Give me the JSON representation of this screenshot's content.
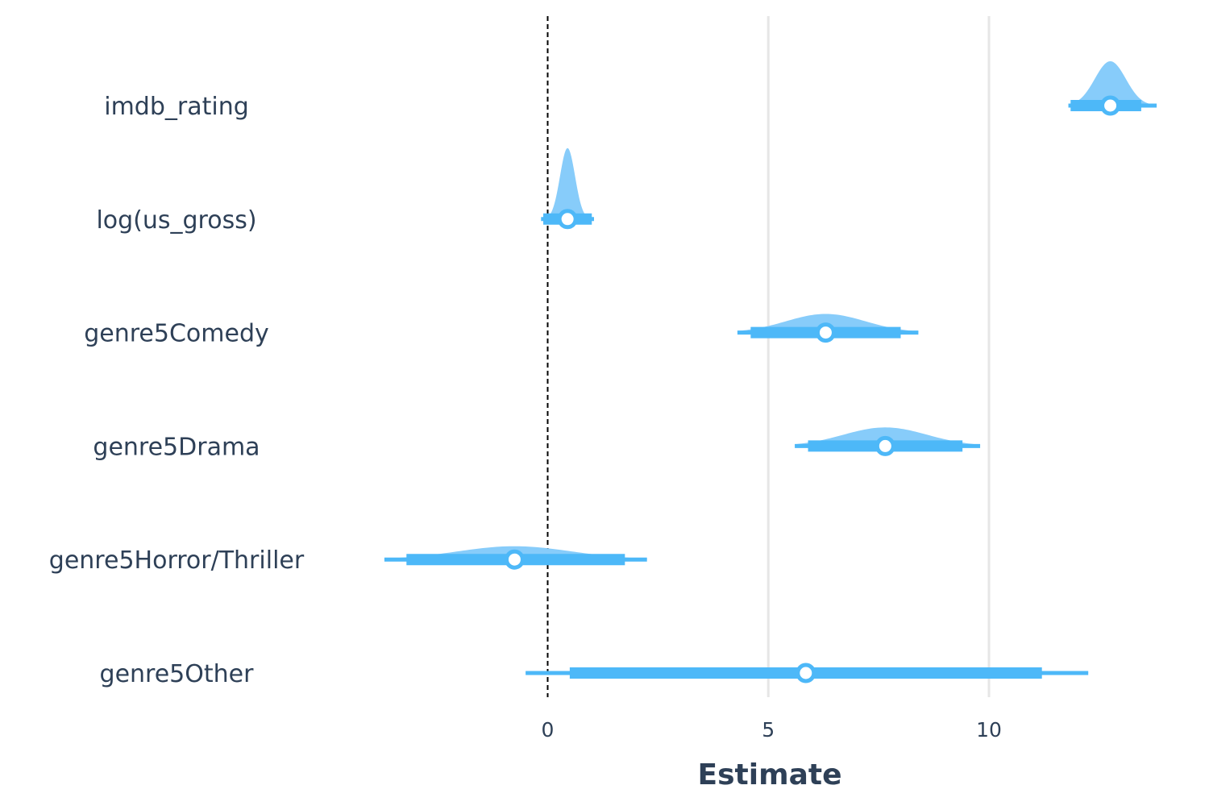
{
  "chart_data": {
    "type": "interval",
    "xlabel": "Estimate",
    "ylabel": "",
    "xlim": [
      -4.9,
      14.0
    ],
    "xticks": [
      0,
      5,
      10
    ],
    "reference_line": 0,
    "grid": "vertical major gridlines",
    "colors": {
      "density": "#87ccfa",
      "interval": "#4db8f8",
      "point_fill": "#ffffff"
    },
    "terms": [
      {
        "name": "imdb_rating",
        "estimate": 12.75,
        "inner": [
          11.85,
          13.45
        ],
        "outer": [
          11.8,
          13.8
        ],
        "density_sd": 0.35,
        "density_peak": 1.0
      },
      {
        "name": "log(us_gross)",
        "estimate": 0.45,
        "inner": [
          -0.1,
          1.0
        ],
        "outer": [
          -0.15,
          1.05
        ],
        "density_sd": 0.17,
        "density_peak": 1.6
      },
      {
        "name": "genre5Comedy",
        "estimate": 6.3,
        "inner": [
          4.6,
          8.0
        ],
        "outer": [
          4.3,
          8.4
        ],
        "density_sd": 0.9,
        "density_peak": 0.42
      },
      {
        "name": "genre5Drama",
        "estimate": 7.65,
        "inner": [
          5.9,
          9.4
        ],
        "outer": [
          5.6,
          9.8
        ],
        "density_sd": 0.95,
        "density_peak": 0.42
      },
      {
        "name": "genre5Horror/Thriller",
        "estimate": -0.75,
        "inner": [
          -3.2,
          1.75
        ],
        "outer": [
          -3.7,
          2.25
        ],
        "density_sd": 1.3,
        "density_peak": 0.3
      },
      {
        "name": "genre5Other",
        "estimate": 5.85,
        "inner": [
          0.5,
          11.2
        ],
        "outer": [
          -0.5,
          12.25
        ],
        "density_sd": 3.0,
        "density_peak": 0.1
      }
    ]
  }
}
